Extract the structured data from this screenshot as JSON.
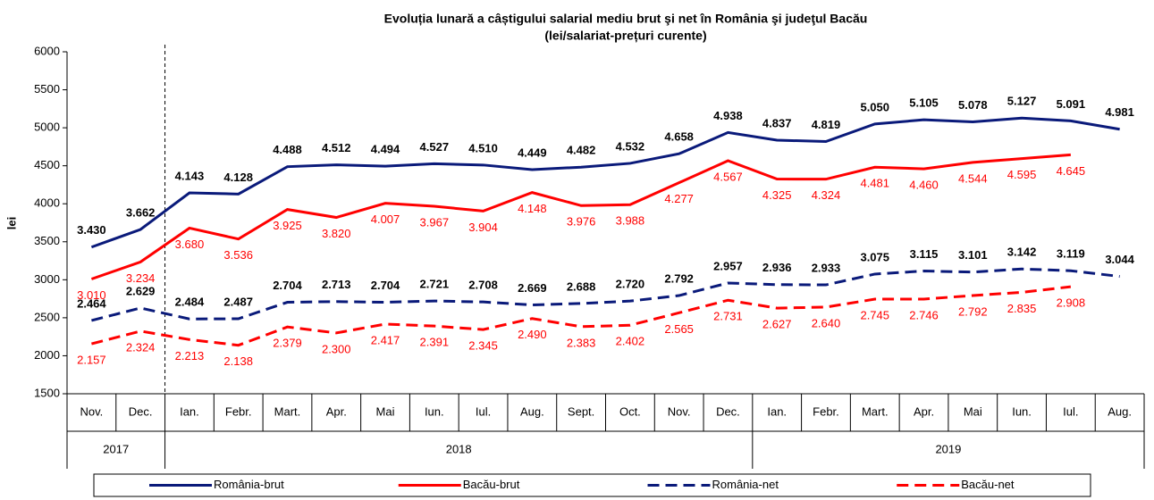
{
  "chart_data": {
    "type": "line",
    "title": "Evoluția lunară a câștigului salarial mediu brut şi net în România şi judeţul Bacău",
    "subtitle": "(lei/salariat-prețuri curente)",
    "y_label": "lei",
    "categories": [
      "Nov.",
      "Dec.",
      "Ian.",
      "Febr.",
      "Mart.",
      "Apr.",
      "Mai",
      "Iun.",
      "Iul.",
      "Aug.",
      "Sept.",
      "Oct.",
      "Nov.",
      "Dec.",
      "Ian.",
      "Febr.",
      "Mart.",
      "Apr.",
      "Mai",
      "Iun.",
      "Iul.",
      "Aug."
    ],
    "year_groups": [
      {
        "label": "2017",
        "span": 2
      },
      {
        "label": "2018",
        "span": 12
      },
      {
        "label": "2019",
        "span": 8
      }
    ],
    "ylim": [
      1500,
      6000
    ],
    "yticks": [
      1500,
      2000,
      2500,
      3000,
      3500,
      4000,
      4500,
      5000,
      5500,
      6000
    ],
    "series": [
      {
        "name": "România-brut",
        "color": "#0a1a7a",
        "dash": false,
        "values": [
          3430,
          3662,
          4143,
          4128,
          4488,
          4512,
          4494,
          4527,
          4510,
          4449,
          4482,
          4532,
          4658,
          4938,
          4837,
          4819,
          5050,
          5105,
          5078,
          5127,
          5091,
          4981
        ],
        "value_labels": [
          "3.430",
          "3.662",
          "4.143",
          "4.128",
          "4.488",
          "4.512",
          "4.494",
          "4.527",
          "4.510",
          "4.449",
          "4.482",
          "4.532",
          "4.658",
          "4.938",
          "4.837",
          "4.819",
          "5.050",
          "5.105",
          "5.078",
          "5.127",
          "5.091",
          "4.981"
        ]
      },
      {
        "name": "Bacău-brut",
        "color": "#ff0000",
        "dash": false,
        "values": [
          3010,
          3234,
          3680,
          3536,
          3925,
          3820,
          4007,
          3967,
          3904,
          4148,
          3976,
          3988,
          4277,
          4567,
          4325,
          4324,
          4481,
          4460,
          4544,
          4595,
          4645,
          null
        ],
        "value_labels": [
          "3.010",
          "3.234",
          "3.680",
          "3.536",
          "3.925",
          "3.820",
          "4.007",
          "3.967",
          "3.904",
          "4.148",
          "3.976",
          "3.988",
          "4.277",
          "4.567",
          "4.325",
          "4.324",
          "4.481",
          "4.460",
          "4.544",
          "4.595",
          "4.645",
          null
        ]
      },
      {
        "name": "România-net",
        "color": "#0a1a7a",
        "dash": true,
        "values": [
          2464,
          2629,
          2484,
          2487,
          2704,
          2713,
          2704,
          2721,
          2708,
          2669,
          2688,
          2720,
          2792,
          2957,
          2936,
          2933,
          3075,
          3115,
          3101,
          3142,
          3119,
          3044
        ],
        "value_labels": [
          "2.464",
          "2.629",
          "2.484",
          "2.487",
          "2.704",
          "2.713",
          "2.704",
          "2.721",
          "2.708",
          "2.669",
          "2.688",
          "2.720",
          "2.792",
          "2.957",
          "2.936",
          "2.933",
          "3.075",
          "3.115",
          "3.101",
          "3.142",
          "3.119",
          "3.044"
        ]
      },
      {
        "name": "Bacău-net",
        "color": "#ff0000",
        "dash": true,
        "values": [
          2157,
          2324,
          2213,
          2138,
          2379,
          2300,
          2417,
          2391,
          2345,
          2490,
          2383,
          2402,
          2565,
          2731,
          2627,
          2640,
          2745,
          2746,
          2792,
          2835,
          2908,
          null
        ],
        "value_labels": [
          "2.157",
          "2.324",
          "2.213",
          "2.138",
          "2.379",
          "2.300",
          "2.417",
          "2.391",
          "2.345",
          "2.490",
          "2.383",
          "2.402",
          "2.565",
          "2.731",
          "2.627",
          "2.640",
          "2.745",
          "2.746",
          "2.792",
          "2.835",
          "2.908",
          null
        ]
      }
    ]
  }
}
